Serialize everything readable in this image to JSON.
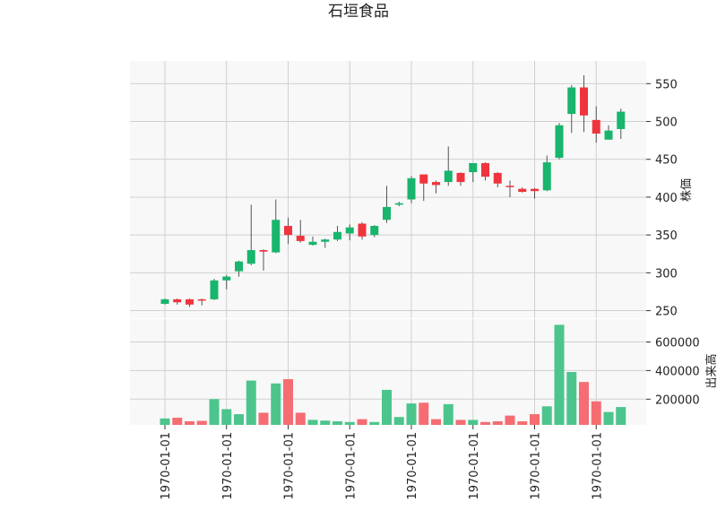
{
  "chart_data": {
    "type": "candlestick",
    "title": "石垣食品",
    "ylabel_price": "株価",
    "ylabel_volume": "出来高",
    "x_tick_labels": [
      "1970-01-01",
      "1970-01-01",
      "1970-01-01",
      "1970-01-01",
      "1970-01-01",
      "1970-01-01",
      "1970-01-01",
      "1970-01-01"
    ],
    "x_tick_indices": [
      0,
      5,
      10,
      15,
      20,
      25,
      30,
      35
    ],
    "price_ylim": [
      240,
      580
    ],
    "price_ticks": [
      250,
      300,
      350,
      400,
      450,
      500,
      550
    ],
    "volume_ylim": [
      20000,
      760000
    ],
    "volume_ticks": [
      200000,
      400000,
      600000
    ],
    "colors": {
      "up": "#18b56c",
      "down": "#f0343d",
      "up_volume": "#4cc58d",
      "down_volume": "#f56d72",
      "wick": "#555555",
      "grid": "#d0d0d0",
      "panel": "#f8f8f8"
    },
    "candles": [
      {
        "o": 259,
        "h": 266,
        "l": 258,
        "c": 265,
        "v": 65000
      },
      {
        "o": 265,
        "h": 266,
        "l": 258,
        "c": 261,
        "v": 70000
      },
      {
        "o": 265,
        "h": 266,
        "l": 255,
        "c": 258,
        "v": 45000
      },
      {
        "o": 265,
        "h": 266,
        "l": 257,
        "c": 264,
        "v": 48000
      },
      {
        "o": 265,
        "h": 292,
        "l": 264,
        "c": 290,
        "v": 200000
      },
      {
        "o": 290,
        "h": 297,
        "l": 278,
        "c": 295,
        "v": 130000
      },
      {
        "o": 302,
        "h": 316,
        "l": 295,
        "c": 315,
        "v": 95000
      },
      {
        "o": 312,
        "h": 390,
        "l": 310,
        "c": 330,
        "v": 330000
      },
      {
        "o": 330,
        "h": 331,
        "l": 303,
        "c": 328,
        "v": 105000
      },
      {
        "o": 327,
        "h": 397,
        "l": 326,
        "c": 370,
        "v": 310000
      },
      {
        "o": 362,
        "h": 373,
        "l": 338,
        "c": 350,
        "v": 340000
      },
      {
        "o": 349,
        "h": 370,
        "l": 340,
        "c": 342,
        "v": 105000
      },
      {
        "o": 337,
        "h": 348,
        "l": 336,
        "c": 341,
        "v": 55000
      },
      {
        "o": 341,
        "h": 345,
        "l": 333,
        "c": 344,
        "v": 50000
      },
      {
        "o": 344,
        "h": 362,
        "l": 342,
        "c": 354,
        "v": 45000
      },
      {
        "o": 352,
        "h": 364,
        "l": 343,
        "c": 360,
        "v": 40000
      },
      {
        "o": 365,
        "h": 367,
        "l": 344,
        "c": 348,
        "v": 60000
      },
      {
        "o": 350,
        "h": 363,
        "l": 347,
        "c": 362,
        "v": 40000
      },
      {
        "o": 370,
        "h": 415,
        "l": 366,
        "c": 387,
        "v": 265000
      },
      {
        "o": 390,
        "h": 394,
        "l": 388,
        "c": 392,
        "v": 75000
      },
      {
        "o": 397,
        "h": 428,
        "l": 392,
        "c": 425,
        "v": 170000
      },
      {
        "o": 430,
        "h": 430,
        "l": 395,
        "c": 418,
        "v": 175000
      },
      {
        "o": 420,
        "h": 422,
        "l": 405,
        "c": 416,
        "v": 60000
      },
      {
        "o": 420,
        "h": 467,
        "l": 415,
        "c": 435,
        "v": 165000
      },
      {
        "o": 432,
        "h": 433,
        "l": 415,
        "c": 420,
        "v": 55000
      },
      {
        "o": 433,
        "h": 445,
        "l": 420,
        "c": 445,
        "v": 55000
      },
      {
        "o": 445,
        "h": 446,
        "l": 422,
        "c": 427,
        "v": 40000
      },
      {
        "o": 432,
        "h": 433,
        "l": 413,
        "c": 418,
        "v": 45000
      },
      {
        "o": 415,
        "h": 422,
        "l": 400,
        "c": 414,
        "v": 85000
      },
      {
        "o": 411,
        "h": 413,
        "l": 406,
        "c": 407,
        "v": 45000
      },
      {
        "o": 411,
        "h": 412,
        "l": 398,
        "c": 408,
        "v": 95000
      },
      {
        "o": 409,
        "h": 455,
        "l": 408,
        "c": 446,
        "v": 150000
      },
      {
        "o": 452,
        "h": 498,
        "l": 450,
        "c": 495,
        "v": 720000
      },
      {
        "o": 510,
        "h": 548,
        "l": 485,
        "c": 545,
        "v": 390000
      },
      {
        "o": 545,
        "h": 561,
        "l": 486,
        "c": 508,
        "v": 320000
      },
      {
        "o": 502,
        "h": 520,
        "l": 472,
        "c": 484,
        "v": 185000
      },
      {
        "o": 476,
        "h": 495,
        "l": 476,
        "c": 488,
        "v": 110000
      },
      {
        "o": 490,
        "h": 517,
        "l": 477,
        "c": 513,
        "v": 145000
      }
    ]
  }
}
